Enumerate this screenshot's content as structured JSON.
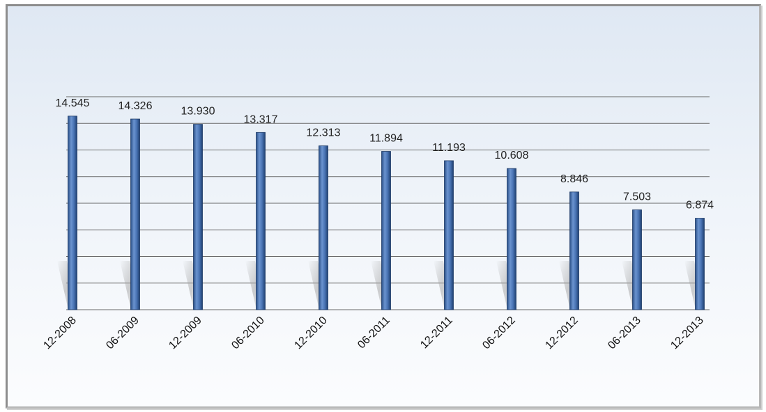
{
  "chart_data": {
    "type": "bar",
    "categories": [
      "12-2008",
      "06-2009",
      "12-2009",
      "06-2010",
      "12-2010",
      "06-2011",
      "12-2011",
      "06-2012",
      "12-2012",
      "06-2013",
      "12-2013"
    ],
    "values": [
      14.545,
      14.326,
      13.93,
      13.317,
      12.313,
      11.894,
      11.193,
      10.608,
      8.846,
      7.503,
      6.874
    ],
    "value_labels": [
      "14.545",
      "14.326",
      "13.930",
      "13.317",
      "12.313",
      "11.894",
      "11.193",
      "10.608",
      "8.846",
      "7.503",
      "6.874"
    ],
    "title": "",
    "xlabel": "",
    "ylabel": "",
    "ylim": [
      0,
      16
    ],
    "grid": true,
    "bar_color": "#3f6aa8"
  }
}
